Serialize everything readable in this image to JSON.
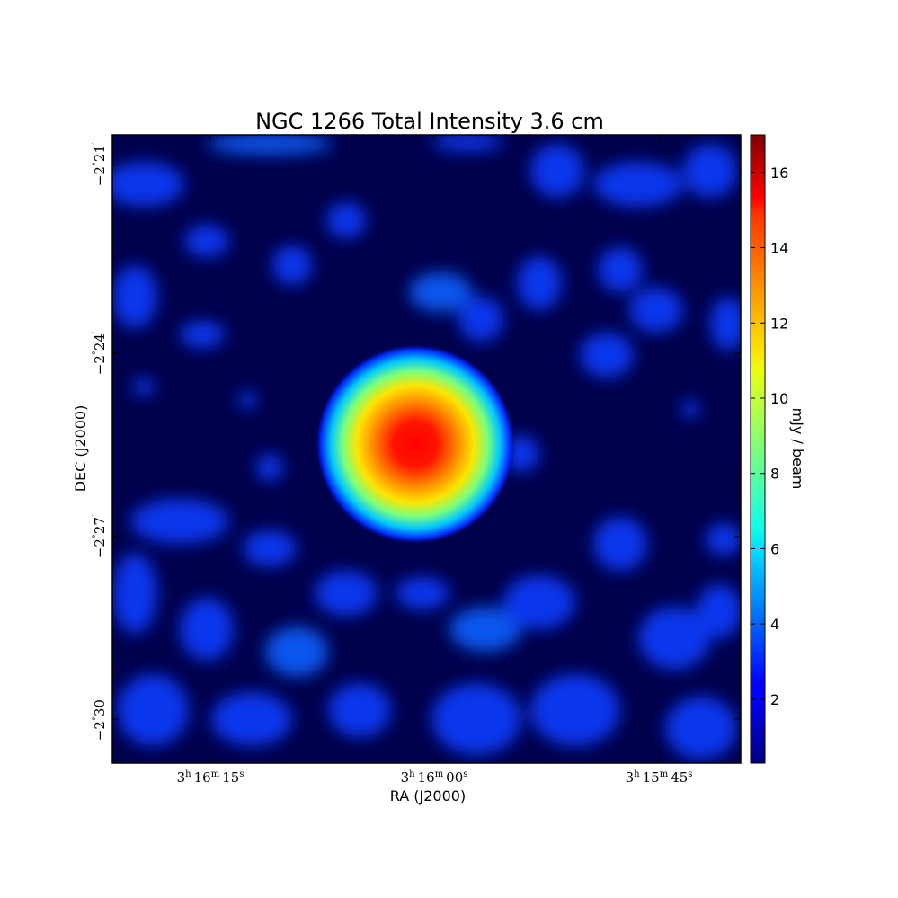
{
  "chart_data": {
    "type": "heatmap",
    "title": "NGC 1266 Total Intensity 3.6 cm",
    "xlabel": "RA (J2000)",
    "ylabel": "DEC (J2000)",
    "x_ticks": [
      {
        "h": "3",
        "m": "16",
        "s": "15"
      },
      {
        "h": "3",
        "m": "16",
        "s": "00"
      },
      {
        "h": "3",
        "m": "15",
        "s": "45"
      }
    ],
    "y_ticks": [
      {
        "deg": "−2",
        "min": "21"
      },
      {
        "deg": "−2",
        "min": "24"
      },
      {
        "deg": "−2",
        "min": "27"
      },
      {
        "deg": "−2",
        "min": "30"
      }
    ],
    "colorbar": {
      "label": "mJy / beam",
      "ticks": [
        "2",
        "4",
        "6",
        "8",
        "10",
        "12",
        "14",
        "16"
      ],
      "range": [
        0.3,
        17.0
      ],
      "colormap": "jet"
    },
    "source_peak_mJy_per_beam": 17.0,
    "colors": {
      "background_low": "#00004c",
      "mid": "#00ff80",
      "high": "#ff0000"
    }
  }
}
